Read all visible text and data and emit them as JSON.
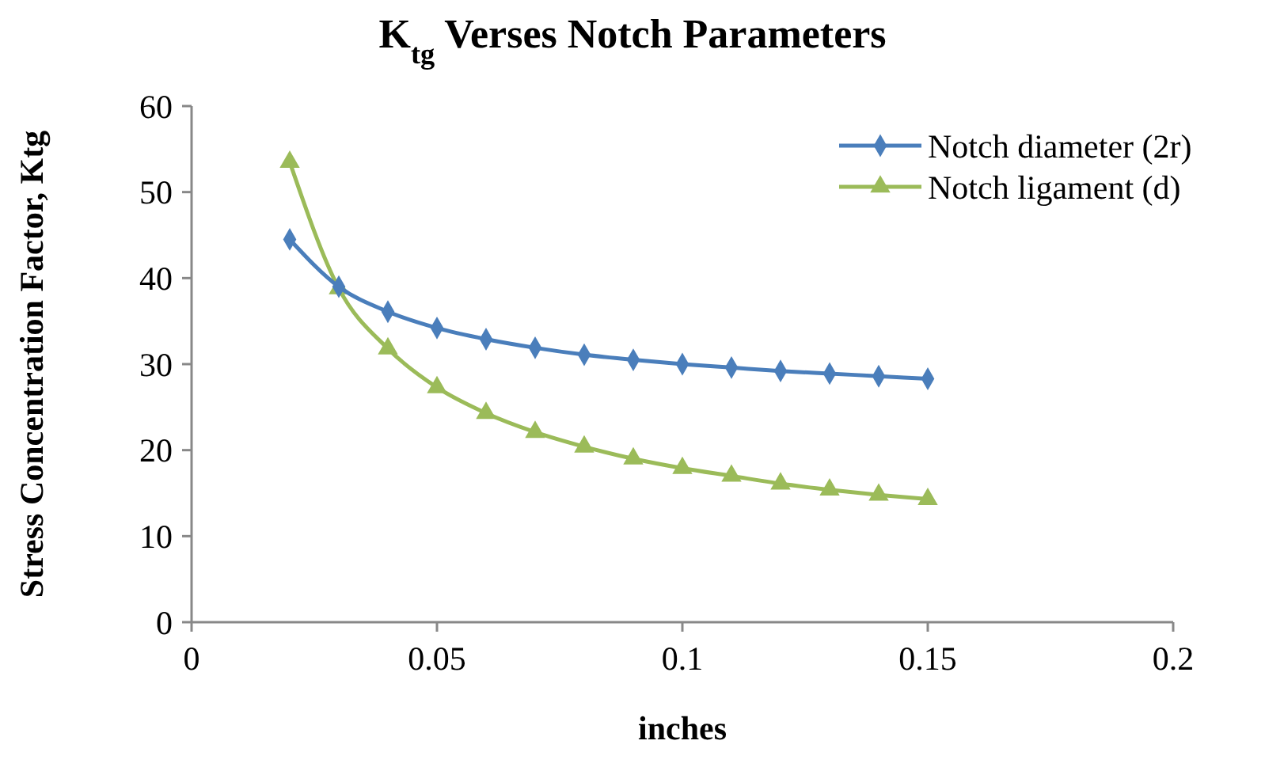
{
  "chart_data": {
    "type": "line",
    "title": "K$_{tg}$ Verses Notch Parameters",
    "xlabel": "inches",
    "ylabel": "Stress Concentration Factor, Ktg",
    "x": [
      0.02,
      0.03,
      0.04,
      0.05,
      0.06,
      0.07,
      0.08,
      0.09,
      0.1,
      0.11,
      0.12,
      0.13,
      0.14,
      0.15
    ],
    "series": [
      {
        "name": "Notch diameter (2r)",
        "color": "#4a7ebb",
        "marker": "diamond",
        "values": [
          44.5,
          39,
          36.1,
          34.2,
          32.9,
          31.9,
          31.1,
          30.5,
          30,
          29.6,
          29.2,
          28.9,
          28.6,
          28.3
        ]
      },
      {
        "name": "Notch ligament (d)",
        "color": "#9bbb59",
        "marker": "triangle",
        "values": [
          53.5,
          38.8,
          31.8,
          27.3,
          24.3,
          22.1,
          20.4,
          19,
          17.9,
          17,
          16.1,
          15.4,
          14.8,
          14.3
        ]
      }
    ],
    "xlim": [
      0,
      0.2
    ],
    "xticks": [
      0,
      0.05,
      0.1,
      0.15,
      0.2
    ],
    "ylim": [
      0,
      60
    ],
    "yticks": [
      0,
      10,
      20,
      30,
      40,
      50,
      60
    ],
    "grid": false,
    "legend": "top right",
    "line_style": "solid"
  }
}
